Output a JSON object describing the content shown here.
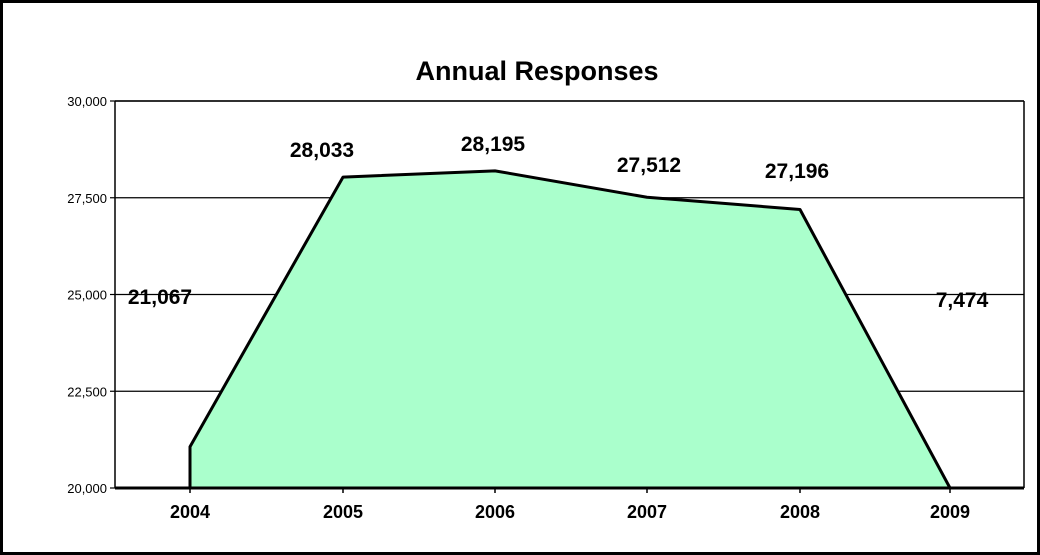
{
  "chart_data": {
    "type": "area",
    "title": "Annual Responses",
    "xlabel": "",
    "ylabel": "",
    "categories": [
      "2004",
      "2005",
      "2006",
      "2007",
      "2008",
      "2009"
    ],
    "values": [
      21067,
      28033,
      28195,
      27512,
      27196,
      7474
    ],
    "data_labels": [
      "21,067",
      "28,033",
      "28,195",
      "27,512",
      "27,196",
      "7,474"
    ],
    "ylim": [
      20000,
      30000
    ],
    "yticks": [
      20000,
      22500,
      25000,
      27500,
      30000
    ],
    "ytick_labels": [
      "20,000",
      "22,500",
      "25,000",
      "27,500",
      "30,000"
    ],
    "grid": true,
    "legend": "none",
    "colors": {
      "fill": "#AAFFCC",
      "stroke": "#000000",
      "grid": "#000000",
      "background": "#FFFFFF"
    }
  }
}
